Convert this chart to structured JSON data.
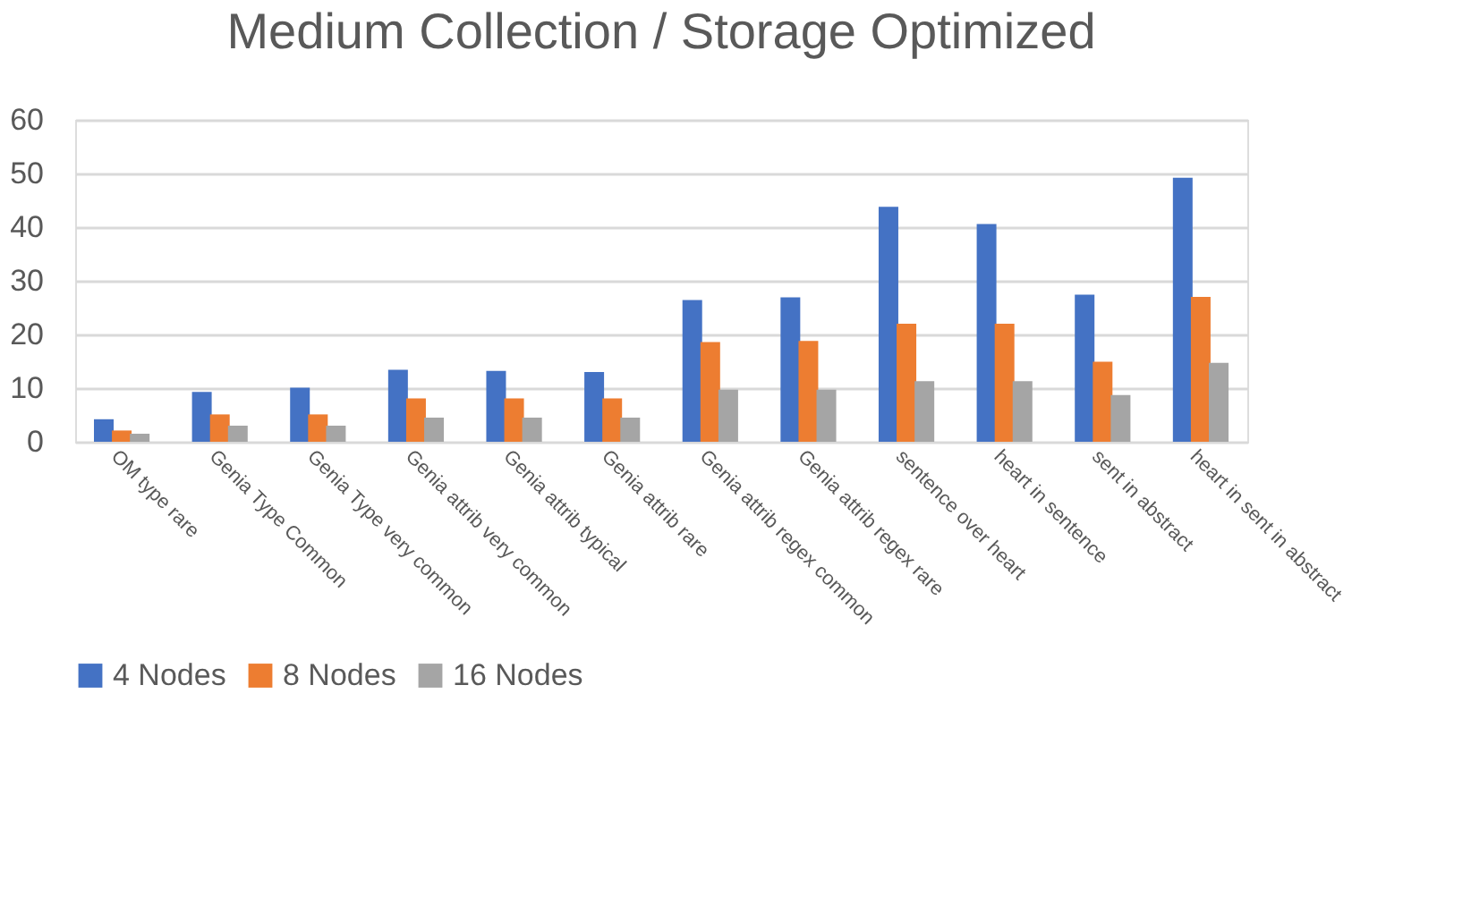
{
  "chart_data": {
    "type": "bar",
    "title": "Medium Collection / Storage Optimized",
    "categories": [
      "OM type rare",
      "Genia Type Common",
      "Genia Type very common",
      "Genia attrib very common",
      "Genia attrib typical",
      "Genia attrib rare",
      "Genia attrib regex common",
      "Genia attrib regex rare",
      "sentence over heart",
      "heart in sentence",
      "sent in abstract",
      "heart in sent in abstract"
    ],
    "series": [
      {
        "name": "4 Nodes",
        "color": "#4472c4",
        "values": [
          4.2,
          9.3,
          10.1,
          13.4,
          13.2,
          13.0,
          26.4,
          26.9,
          43.8,
          40.6,
          27.4,
          49.2
        ]
      },
      {
        "name": "8 Nodes",
        "color": "#ed7d31",
        "values": [
          2.1,
          5.1,
          5.1,
          8.1,
          8.1,
          8.1,
          18.6,
          18.8,
          22.0,
          22.0,
          14.9,
          27.0
        ]
      },
      {
        "name": "16 Nodes",
        "color": "#a5a5a5",
        "values": [
          1.5,
          3.0,
          3.0,
          4.5,
          4.5,
          4.5,
          9.7,
          9.7,
          11.3,
          11.3,
          8.7,
          14.7
        ]
      }
    ],
    "ylim": [
      0,
      60
    ],
    "yticks": [
      0,
      10,
      20,
      30,
      40,
      50,
      60
    ],
    "grid": "y",
    "legend": "bottom"
  }
}
